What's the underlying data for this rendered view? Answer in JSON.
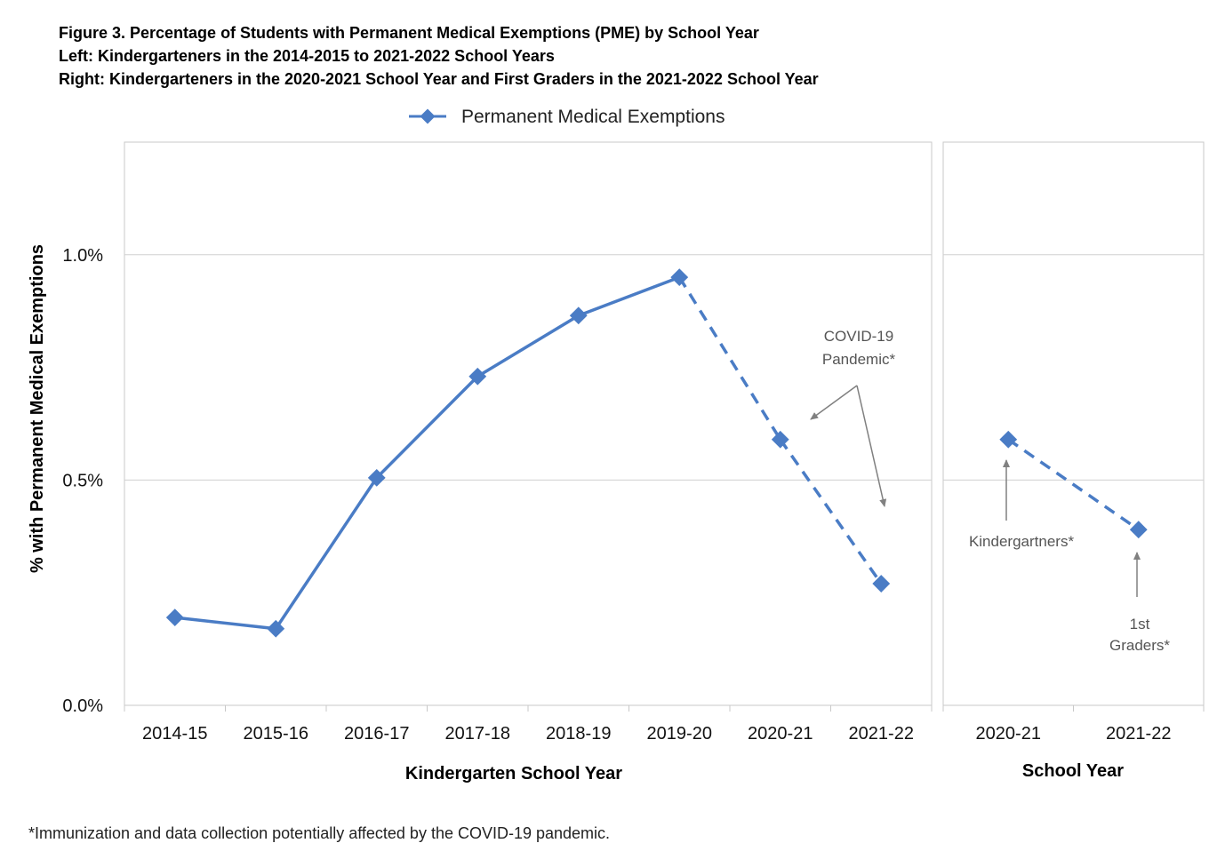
{
  "figure": {
    "title_line1": "Figure 3.  Percentage of Students with Permanent Medical Exemptions (PME) by School Year",
    "title_line2": "Left:  Kindergarteners in the 2014-2015 to 2021-2022 School Years",
    "title_line3": "Right:  Kindergarteners in the 2020-2021 School Year and First Graders in the 2021-2022 School Year",
    "footnote": "*Immunization and data collection potentially affected by the COVID-19 pandemic."
  },
  "colors": {
    "series": "#4a7cc5",
    "gridline": "#d0d0d0",
    "frame": "#c8c8c8",
    "annotation": "#808080"
  },
  "chart_data": [
    {
      "type": "line",
      "panel": "left",
      "legend": "Permanent Medical Exemptions",
      "legend_position": "top-center",
      "ylabel": "% with  Permanent Medical Exemptions",
      "xlabel": "Kindergarten School Year",
      "ylim": [
        0,
        1.25
      ],
      "yticks": [
        0.0,
        0.5,
        1.0
      ],
      "ytick_labels": [
        "0.0%",
        "0.5%",
        "1.0%"
      ],
      "grid": true,
      "categories": [
        "2014-15",
        "2015-16",
        "2016-17",
        "2017-18",
        "2018-19",
        "2019-20",
        "2020-21",
        "2021-22"
      ],
      "series": [
        {
          "name": "Permanent Medical Exemptions",
          "values": [
            0.195,
            0.17,
            0.505,
            0.73,
            0.865,
            0.95,
            0.59,
            0.27
          ],
          "dashed_from_index": 5
        }
      ],
      "annotations": [
        {
          "text_line1": "COVID-19",
          "text_line2": "Pandemic*"
        }
      ]
    },
    {
      "type": "line",
      "panel": "right",
      "xlabel": "School Year",
      "ylim": [
        0,
        1.25
      ],
      "grid": true,
      "categories": [
        "2020-21",
        "2021-22"
      ],
      "series": [
        {
          "name": "Permanent Medical Exemptions",
          "values": [
            0.59,
            0.39
          ],
          "dashed_from_index": 0
        }
      ],
      "annotations": [
        {
          "text_line1": "Kindergartners*"
        },
        {
          "text_line1": "1st",
          "text_line2": "Graders*"
        }
      ]
    }
  ]
}
